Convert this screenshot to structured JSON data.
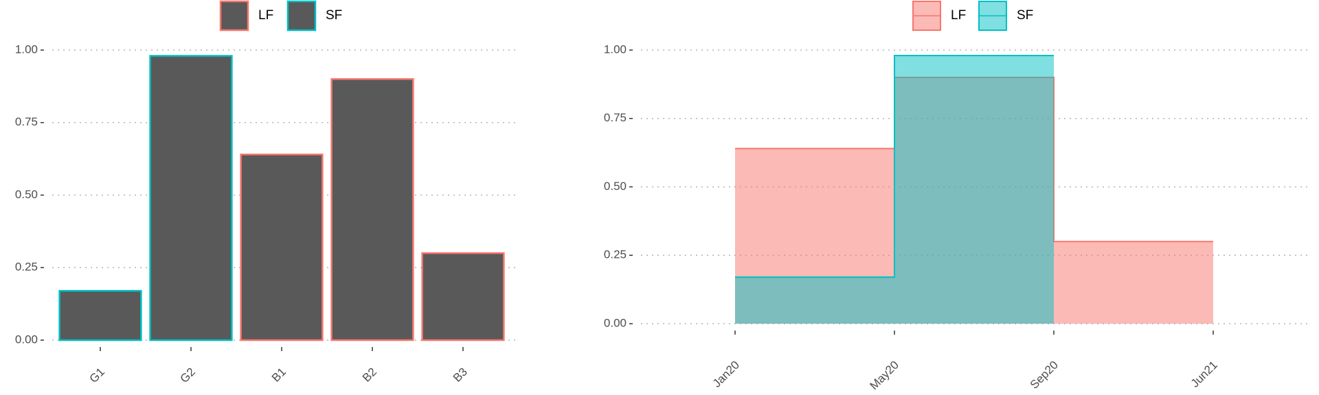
{
  "chart_data": [
    {
      "type": "bar",
      "categories": [
        "G1",
        "G2",
        "B1",
        "B2",
        "B3"
      ],
      "series": [
        {
          "name": "LF",
          "color": "#F8766D",
          "values": [
            null,
            null,
            0.64,
            0.9,
            0.3
          ]
        },
        {
          "name": "SF",
          "color": "#00BFC4",
          "values": [
            0.17,
            0.98,
            null,
            null,
            null
          ]
        }
      ],
      "fill": "#595959",
      "ylim": [
        0,
        1
      ],
      "yticks": [
        {
          "value": 0,
          "label": "0.00"
        },
        0.25,
        {
          "value": 0.5,
          "label": "0.50"
        },
        0.75,
        {
          "value": 1,
          "label": "1.00"
        }
      ],
      "grid": true,
      "legend": "top"
    },
    {
      "type": "step-area",
      "categories": [
        "Jan20",
        "May20",
        "Sep20",
        "Jun21"
      ],
      "series": [
        {
          "name": "LF",
          "color": "#F8766D",
          "values": [
            0.64,
            0.9,
            0.3,
            0.3
          ]
        },
        {
          "name": "SF",
          "color": "#00BFC4",
          "values": [
            0.17,
            0.98,
            0.98,
            null
          ]
        }
      ],
      "ylim": [
        0,
        1
      ],
      "yticks": [
        {
          "value": 0,
          "label": "0.00"
        },
        0.25,
        {
          "value": 0.5,
          "label": "0.50"
        },
        0.75,
        {
          "value": 1,
          "label": "1.00"
        }
      ],
      "grid": true,
      "legend": "top"
    }
  ]
}
